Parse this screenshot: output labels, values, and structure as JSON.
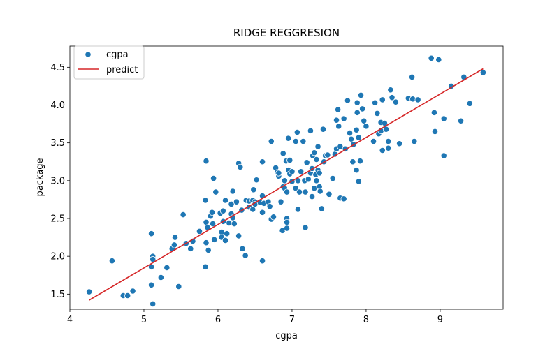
{
  "chart_data": {
    "type": "scatter",
    "title": "RIDGE REGGRESION",
    "xlabel": "cgpa",
    "ylabel": "package",
    "xlim": [
      4.0,
      9.85
    ],
    "ylim": [
      1.3,
      4.78
    ],
    "xticks": [
      4,
      5,
      6,
      7,
      8,
      9
    ],
    "yticks": [
      1.5,
      2.0,
      2.5,
      3.0,
      3.5,
      4.0,
      4.5
    ],
    "xtick_labels": [
      "4",
      "5",
      "6",
      "7",
      "8",
      "9"
    ],
    "ytick_labels": [
      "1.5",
      "2.0",
      "2.5",
      "3.0",
      "3.5",
      "4.0",
      "4.5"
    ],
    "grid": false,
    "legend": {
      "placement": "top-left",
      "entries": [
        "cgpa",
        "predict"
      ]
    },
    "colors": {
      "points": "#1f77b4",
      "line": "#d62728",
      "point_edge": "#ffffff"
    },
    "series": [
      {
        "name": "cgpa",
        "kind": "scatter",
        "points": [
          [
            4.26,
            1.53
          ],
          [
            4.57,
            1.94
          ],
          [
            4.72,
            1.48
          ],
          [
            4.78,
            1.48
          ],
          [
            4.85,
            1.54
          ],
          [
            5.1,
            2.3
          ],
          [
            5.12,
            2.0
          ],
          [
            5.1,
            1.86
          ],
          [
            5.12,
            1.96
          ],
          [
            5.12,
            1.37
          ],
          [
            5.1,
            1.62
          ],
          [
            5.23,
            1.72
          ],
          [
            5.31,
            1.85
          ],
          [
            5.38,
            2.1
          ],
          [
            5.42,
            2.25
          ],
          [
            5.41,
            2.15
          ],
          [
            5.47,
            1.6
          ],
          [
            5.53,
            2.55
          ],
          [
            5.57,
            2.17
          ],
          [
            5.63,
            2.1
          ],
          [
            5.66,
            2.2
          ],
          [
            5.75,
            2.33
          ],
          [
            5.83,
            1.86
          ],
          [
            5.83,
            2.74
          ],
          [
            5.84,
            3.26
          ],
          [
            5.84,
            2.45
          ],
          [
            5.84,
            2.18
          ],
          [
            5.86,
            2.38
          ],
          [
            5.87,
            2.08
          ],
          [
            5.9,
            2.53
          ],
          [
            5.92,
            2.58
          ],
          [
            5.93,
            2.43
          ],
          [
            5.95,
            2.22
          ],
          [
            5.94,
            3.03
          ],
          [
            5.97,
            2.85
          ],
          [
            6.03,
            2.57
          ],
          [
            6.05,
            2.32
          ],
          [
            6.05,
            2.25
          ],
          [
            6.07,
            2.6
          ],
          [
            6.07,
            2.46
          ],
          [
            6.1,
            2.21
          ],
          [
            6.1,
            2.74
          ],
          [
            6.12,
            2.3
          ],
          [
            6.15,
            2.44
          ],
          [
            6.18,
            2.69
          ],
          [
            6.18,
            2.56
          ],
          [
            6.2,
            2.51
          ],
          [
            6.2,
            2.86
          ],
          [
            6.22,
            2.43
          ],
          [
            6.25,
            2.72
          ],
          [
            6.28,
            2.27
          ],
          [
            6.28,
            3.23
          ],
          [
            6.3,
            3.18
          ],
          [
            6.32,
            2.61
          ],
          [
            6.33,
            2.1
          ],
          [
            6.37,
            2.01
          ],
          [
            6.38,
            2.74
          ],
          [
            6.42,
            2.73
          ],
          [
            6.42,
            2.65
          ],
          [
            6.47,
            2.74
          ],
          [
            6.47,
            2.62
          ],
          [
            6.48,
            2.88
          ],
          [
            6.5,
            2.72
          ],
          [
            6.5,
            2.69
          ],
          [
            6.52,
            3.01
          ],
          [
            6.57,
            2.71
          ],
          [
            6.6,
            2.8
          ],
          [
            6.6,
            3.25
          ],
          [
            6.6,
            2.58
          ],
          [
            6.6,
            1.94
          ],
          [
            6.62,
            2.7
          ],
          [
            6.68,
            2.72
          ],
          [
            6.7,
            2.66
          ],
          [
            6.72,
            2.49
          ],
          [
            6.72,
            3.52
          ],
          [
            6.75,
            2.52
          ],
          [
            6.78,
            3.17
          ],
          [
            6.8,
            3.11
          ],
          [
            6.82,
            3.06
          ],
          [
            6.82,
            3.1
          ],
          [
            6.85,
            2.72
          ],
          [
            6.87,
            2.34
          ],
          [
            6.88,
            2.92
          ],
          [
            6.88,
            3.36
          ],
          [
            6.9,
            3.0
          ],
          [
            6.9,
            2.9
          ],
          [
            6.92,
            3.26
          ],
          [
            6.93,
            2.85
          ],
          [
            6.93,
            2.5
          ],
          [
            6.93,
            2.45
          ],
          [
            6.93,
            2.37
          ],
          [
            6.95,
            3.56
          ],
          [
            6.95,
            3.14
          ],
          [
            6.97,
            3.27
          ],
          [
            6.97,
            3.09
          ],
          [
            7.0,
            3.12
          ],
          [
            7.0,
            2.99
          ],
          [
            7.05,
            3.52
          ],
          [
            7.05,
            2.9
          ],
          [
            7.07,
            3.64
          ],
          [
            7.08,
            3.0
          ],
          [
            7.08,
            2.62
          ],
          [
            7.1,
            2.85
          ],
          [
            7.12,
            3.12
          ],
          [
            7.15,
            3.52
          ],
          [
            7.17,
            3.0
          ],
          [
            7.18,
            2.38
          ],
          [
            7.18,
            2.85
          ],
          [
            7.2,
            3.24
          ],
          [
            7.22,
            3.02
          ],
          [
            7.25,
            3.66
          ],
          [
            7.25,
            3.1
          ],
          [
            7.27,
            2.79
          ],
          [
            7.27,
            3.16
          ],
          [
            7.28,
            3.33
          ],
          [
            7.3,
            3.37
          ],
          [
            7.3,
            2.9
          ],
          [
            7.32,
            3.08
          ],
          [
            7.33,
            3.0
          ],
          [
            7.33,
            3.28
          ],
          [
            7.35,
            3.45
          ],
          [
            7.35,
            3.14
          ],
          [
            7.37,
            2.92
          ],
          [
            7.37,
            3.1
          ],
          [
            7.38,
            2.86
          ],
          [
            7.4,
            2.63
          ],
          [
            7.42,
            3.68
          ],
          [
            7.43,
            3.25
          ],
          [
            7.45,
            3.33
          ],
          [
            7.48,
            3.34
          ],
          [
            7.5,
            2.82
          ],
          [
            7.55,
            3.03
          ],
          [
            7.58,
            3.35
          ],
          [
            7.6,
            3.8
          ],
          [
            7.6,
            3.42
          ],
          [
            7.62,
            3.94
          ],
          [
            7.63,
            3.72
          ],
          [
            7.65,
            2.77
          ],
          [
            7.65,
            3.45
          ],
          [
            7.7,
            3.82
          ],
          [
            7.7,
            2.76
          ],
          [
            7.72,
            3.42
          ],
          [
            7.75,
            4.06
          ],
          [
            7.78,
            3.63
          ],
          [
            7.8,
            3.55
          ],
          [
            7.82,
            3.25
          ],
          [
            7.83,
            3.48
          ],
          [
            7.87,
            3.67
          ],
          [
            7.87,
            3.14
          ],
          [
            7.88,
            3.9
          ],
          [
            7.88,
            4.03
          ],
          [
            7.9,
            2.99
          ],
          [
            7.9,
            3.57
          ],
          [
            7.92,
            3.26
          ],
          [
            7.93,
            4.13
          ],
          [
            7.95,
            3.95
          ],
          [
            7.97,
            3.79
          ],
          [
            8.0,
            3.72
          ],
          [
            8.1,
            3.52
          ],
          [
            8.12,
            4.03
          ],
          [
            8.15,
            3.89
          ],
          [
            8.17,
            3.62
          ],
          [
            8.2,
            3.66
          ],
          [
            8.2,
            3.77
          ],
          [
            8.22,
            3.4
          ],
          [
            8.22,
            4.07
          ],
          [
            8.25,
            3.76
          ],
          [
            8.27,
            3.68
          ],
          [
            8.3,
            3.52
          ],
          [
            8.3,
            3.43
          ],
          [
            8.33,
            4.2
          ],
          [
            8.35,
            4.1
          ],
          [
            8.4,
            4.04
          ],
          [
            8.45,
            3.49
          ],
          [
            8.57,
            4.09
          ],
          [
            8.62,
            4.37
          ],
          [
            8.63,
            4.08
          ],
          [
            8.65,
            3.52
          ],
          [
            8.7,
            4.07
          ],
          [
            8.88,
            4.62
          ],
          [
            8.92,
            3.9
          ],
          [
            8.93,
            3.65
          ],
          [
            8.98,
            4.6
          ],
          [
            9.05,
            3.82
          ],
          [
            9.05,
            3.33
          ],
          [
            9.15,
            4.25
          ],
          [
            9.28,
            3.79
          ],
          [
            9.32,
            4.37
          ],
          [
            9.4,
            4.02
          ],
          [
            9.58,
            4.43
          ]
        ]
      },
      {
        "name": "predict",
        "kind": "line",
        "points": [
          [
            4.26,
            1.42
          ],
          [
            9.58,
            4.48
          ]
        ]
      }
    ]
  }
}
